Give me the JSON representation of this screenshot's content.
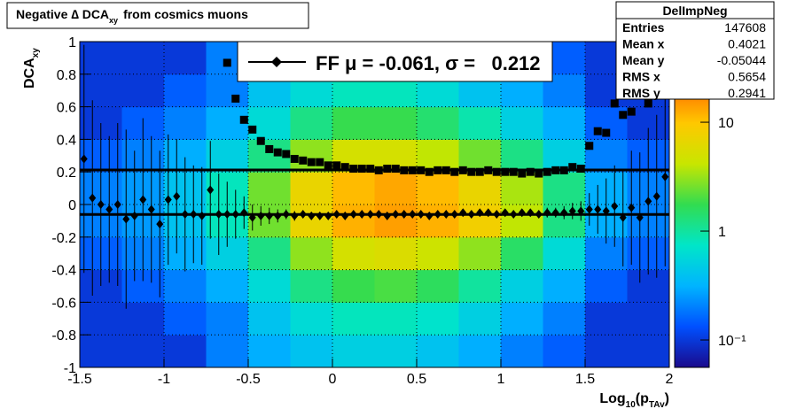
{
  "chart_data": {
    "type": "heatmap",
    "title": "Negative ∆ DCA",
    "title_sub": "xy",
    "title_end": "from cosmics muons",
    "x_label": "Log",
    "x_label_sub": "10",
    "x_label_mid": "(p",
    "x_label_sub2": "TAv",
    "x_label_end": ")",
    "y_label": "DCA",
    "y_label_sub": "xy",
    "xlim": [
      -1.5,
      2
    ],
    "xticks": [
      -1.5,
      -1,
      -0.5,
      0,
      0.5,
      1,
      1.5,
      2
    ],
    "ylim": [
      -1,
      1
    ],
    "yticks": [
      -1,
      -0.8,
      -0.6,
      -0.4,
      -0.2,
      0,
      0.2,
      0.4,
      0.6,
      0.8,
      1
    ],
    "grid": true,
    "log_z": true,
    "zlim": [
      0.056,
      55
    ],
    "zticks": [
      {
        "value": 0.1,
        "label": "10⁻¹"
      },
      1,
      10
    ],
    "palette": [
      "#1a0a8c",
      "#0050ff",
      "#00b4ff",
      "#00e6c8",
      "#32dc50",
      "#c8e600",
      "#ffc800",
      "#ff6400",
      "#e61400"
    ],
    "xbins": [
      -1.5,
      -1.25,
      -1,
      -0.75,
      -0.5,
      -0.25,
      0,
      0.25,
      0.5,
      0.75,
      1,
      1.25,
      1.5,
      1.75,
      2
    ],
    "ybins": [
      -1,
      -0.8,
      -0.6,
      -0.4,
      -0.2,
      0,
      0.2,
      0.4,
      0.6,
      0.8,
      1
    ],
    "z": [
      [
        0.1,
        0.1,
        0.1,
        0.2,
        0.3,
        0.4,
        0.5,
        0.5,
        0.4,
        0.3,
        0.2,
        0.15,
        0.1,
        0.1
      ],
      [
        0.1,
        0.1,
        0.15,
        0.2,
        0.4,
        0.6,
        0.8,
        0.8,
        0.7,
        0.5,
        0.3,
        0.2,
        0.1,
        0.1
      ],
      [
        0.1,
        0.15,
        0.2,
        0.3,
        0.6,
        1.2,
        1.8,
        2,
        1.6,
        1,
        0.5,
        0.3,
        0.15,
        0.1
      ],
      [
        0.15,
        0.2,
        0.3,
        0.5,
        1.2,
        3,
        5,
        5.5,
        4.5,
        3,
        1.5,
        0.6,
        0.2,
        0.15
      ],
      [
        0.2,
        0.25,
        0.4,
        0.8,
        2.5,
        7,
        12,
        14,
        12,
        8,
        4,
        1.2,
        0.3,
        0.2
      ],
      [
        0.2,
        0.25,
        0.4,
        0.8,
        2.5,
        7,
        11,
        13,
        11,
        7,
        3.5,
        1.2,
        0.3,
        0.2
      ],
      [
        0.15,
        0.2,
        0.3,
        0.5,
        1.2,
        3,
        5,
        5,
        4,
        2.5,
        1.2,
        0.5,
        0.2,
        0.15
      ],
      [
        0.1,
        0.15,
        0.2,
        0.3,
        0.6,
        1.2,
        1.8,
        1.8,
        1.4,
        0.9,
        0.5,
        0.3,
        0.15,
        0.1
      ],
      [
        0.1,
        0.1,
        0.15,
        0.2,
        0.4,
        0.6,
        0.8,
        0.8,
        0.6,
        0.4,
        0.3,
        0.2,
        0.1,
        0.1
      ],
      [
        0.1,
        0.1,
        0.1,
        0.2,
        0.3,
        0.4,
        0.5,
        0.5,
        0.4,
        0.3,
        0.2,
        0.15,
        0.1,
        0.1
      ]
    ],
    "x": [
      -1.475,
      -1.425,
      -1.375,
      -1.325,
      -1.275,
      -1.225,
      -1.175,
      -1.125,
      -1.075,
      -1.025,
      -0.975,
      -0.925,
      -0.875,
      -0.825,
      -0.775,
      -0.725,
      -0.675,
      -0.625,
      -0.575,
      -0.525,
      -0.475,
      -0.425,
      -0.375,
      -0.325,
      -0.275,
      -0.225,
      -0.175,
      -0.125,
      -0.075,
      -0.025,
      0.025,
      0.075,
      0.125,
      0.175,
      0.225,
      0.275,
      0.325,
      0.375,
      0.425,
      0.475,
      0.525,
      0.575,
      0.625,
      0.675,
      0.725,
      0.775,
      0.825,
      0.875,
      0.925,
      0.975,
      1.025,
      1.075,
      1.125,
      1.175,
      1.225,
      1.275,
      1.325,
      1.375,
      1.425,
      1.475,
      1.525,
      1.575,
      1.625,
      1.675,
      1.725,
      1.775,
      1.825,
      1.875,
      1.925,
      1.975
    ],
    "series": [
      {
        "marker": "diamond",
        "color": "#000000",
        "values": [
          0.28,
          0.04,
          0.0,
          -0.03,
          0.0,
          -0.09,
          -0.07,
          0.03,
          -0.03,
          -0.12,
          0.03,
          0.05,
          -0.06,
          -0.06,
          -0.07,
          0.09,
          -0.06,
          -0.06,
          -0.06,
          -0.05,
          -0.08,
          -0.07,
          -0.07,
          -0.07,
          -0.06,
          -0.07,
          -0.06,
          -0.07,
          -0.07,
          -0.07,
          -0.06,
          -0.07,
          -0.06,
          -0.06,
          -0.06,
          -0.06,
          -0.07,
          -0.06,
          -0.06,
          -0.06,
          -0.06,
          -0.07,
          -0.06,
          -0.06,
          -0.06,
          -0.05,
          -0.06,
          -0.05,
          -0.05,
          -0.06,
          -0.05,
          -0.06,
          -0.05,
          -0.05,
          -0.06,
          -0.05,
          -0.05,
          -0.05,
          -0.04,
          -0.04,
          -0.03,
          -0.03,
          -0.04,
          -0.01,
          -0.08,
          -0.02,
          -0.08,
          0.02,
          0.05,
          0.17
        ],
        "errors": [
          0.7,
          0.6,
          0.5,
          0.45,
          0.5,
          0.55,
          0.4,
          0.5,
          0.45,
          0.45,
          0.4,
          0.35,
          0.35,
          0.3,
          0.3,
          0.3,
          0.25,
          0.2,
          0.15,
          0.1,
          0.08,
          0.06,
          0.05,
          0.04,
          0.03,
          0.03,
          0.02,
          0.02,
          0.02,
          0.02,
          0.02,
          0.02,
          0.02,
          0.02,
          0.02,
          0.02,
          0.02,
          0.02,
          0.02,
          0.02,
          0.02,
          0.02,
          0.02,
          0.02,
          0.02,
          0.02,
          0.02,
          0.02,
          0.02,
          0.02,
          0.02,
          0.02,
          0.02,
          0.02,
          0.02,
          0.03,
          0.03,
          0.04,
          0.05,
          0.06,
          0.1,
          0.15,
          0.2,
          0.25,
          0.3,
          0.35,
          0.4,
          0.45,
          0.5,
          0.55
        ]
      },
      {
        "marker": "square",
        "color": "#000000",
        "values": [
          null,
          null,
          null,
          null,
          null,
          null,
          null,
          null,
          null,
          null,
          null,
          null,
          null,
          null,
          null,
          null,
          null,
          0.87,
          0.65,
          0.52,
          0.46,
          0.39,
          0.34,
          0.32,
          0.31,
          0.28,
          0.27,
          0.26,
          0.26,
          0.24,
          0.24,
          0.23,
          0.22,
          0.22,
          0.22,
          0.21,
          0.22,
          0.22,
          0.21,
          0.21,
          0.21,
          0.2,
          0.21,
          0.21,
          0.2,
          0.21,
          0.2,
          0.2,
          0.21,
          0.2,
          0.2,
          0.2,
          0.19,
          0.2,
          0.19,
          0.2,
          0.21,
          0.21,
          0.23,
          0.22,
          0.36,
          0.45,
          0.44,
          0.62,
          0.55,
          0.57,
          0.72,
          0.62,
          0.74,
          null
        ]
      }
    ],
    "fits": [
      -0.061,
      0.212
    ],
    "legend": "FF μ = -0.061, σ =   0.212",
    "stats": {
      "title": "DelImpNeg",
      "rows": [
        [
          "Entries",
          "147608"
        ],
        [
          "Mean x",
          "0.4021"
        ],
        [
          "Mean y",
          "-0.05044"
        ],
        [
          "RMS x",
          "0.5654"
        ],
        [
          "RMS y",
          "0.2941"
        ]
      ]
    }
  }
}
